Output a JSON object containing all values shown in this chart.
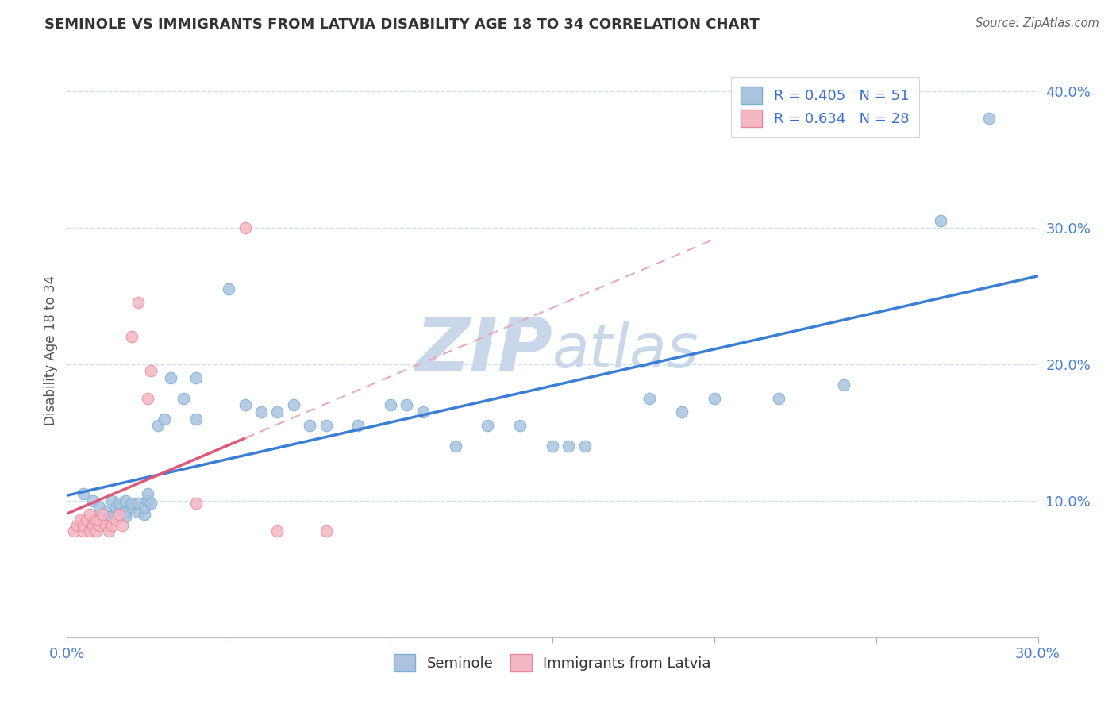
{
  "title": "SEMINOLE VS IMMIGRANTS FROM LATVIA DISABILITY AGE 18 TO 34 CORRELATION CHART",
  "source": "Source: ZipAtlas.com",
  "ylabel_label": "Disability Age 18 to 34",
  "xlim": [
    0.0,
    0.3
  ],
  "ylim": [
    0.0,
    0.42
  ],
  "x_ticks": [
    0.0,
    0.05,
    0.1,
    0.15,
    0.2,
    0.25,
    0.3
  ],
  "x_tick_labels": [
    "0.0%",
    "",
    "",
    "",
    "",
    "",
    "30.0%"
  ],
  "y_ticks": [
    0.0,
    0.1,
    0.2,
    0.3,
    0.4
  ],
  "y_tick_labels": [
    "",
    "10.0%",
    "20.0%",
    "30.0%",
    "40.0%"
  ],
  "seminole_R": 0.405,
  "seminole_N": 51,
  "latvia_R": 0.634,
  "latvia_N": 28,
  "seminole_color": "#aac4e0",
  "seminole_edge": "#7aafd4",
  "latvia_color": "#f4b8c4",
  "latvia_edge": "#e8899a",
  "trend_seminole_color": "#3a7fd5",
  "trend_latvia_color": "#e05878",
  "trend_latvia_dashed_color": "#e8aabb",
  "watermark_color": "#c8d8ea",
  "legend_R_color": "#3b6fd4",
  "grid_color": "#ccddee",
  "tick_label_color": "#4a80d0",
  "seminole_scatter": [
    [
      0.005,
      0.105
    ],
    [
      0.008,
      0.1
    ],
    [
      0.01,
      0.095
    ],
    [
      0.012,
      0.092
    ],
    [
      0.013,
      0.088
    ],
    [
      0.014,
      0.1
    ],
    [
      0.015,
      0.095
    ],
    [
      0.016,
      0.092
    ],
    [
      0.016,
      0.098
    ],
    [
      0.018,
      0.088
    ],
    [
      0.018,
      0.092
    ],
    [
      0.018,
      0.1
    ],
    [
      0.02,
      0.095
    ],
    [
      0.02,
      0.098
    ],
    [
      0.022,
      0.092
    ],
    [
      0.022,
      0.098
    ],
    [
      0.024,
      0.09
    ],
    [
      0.024,
      0.095
    ],
    [
      0.025,
      0.1
    ],
    [
      0.025,
      0.105
    ],
    [
      0.026,
      0.098
    ],
    [
      0.028,
      0.155
    ],
    [
      0.03,
      0.16
    ],
    [
      0.032,
      0.19
    ],
    [
      0.036,
      0.175
    ],
    [
      0.04,
      0.16
    ],
    [
      0.04,
      0.19
    ],
    [
      0.05,
      0.255
    ],
    [
      0.055,
      0.17
    ],
    [
      0.06,
      0.165
    ],
    [
      0.065,
      0.165
    ],
    [
      0.07,
      0.17
    ],
    [
      0.075,
      0.155
    ],
    [
      0.08,
      0.155
    ],
    [
      0.09,
      0.155
    ],
    [
      0.1,
      0.17
    ],
    [
      0.105,
      0.17
    ],
    [
      0.11,
      0.165
    ],
    [
      0.12,
      0.14
    ],
    [
      0.13,
      0.155
    ],
    [
      0.14,
      0.155
    ],
    [
      0.15,
      0.14
    ],
    [
      0.155,
      0.14
    ],
    [
      0.16,
      0.14
    ],
    [
      0.18,
      0.175
    ],
    [
      0.19,
      0.165
    ],
    [
      0.2,
      0.175
    ],
    [
      0.22,
      0.175
    ],
    [
      0.24,
      0.185
    ],
    [
      0.27,
      0.305
    ],
    [
      0.285,
      0.38
    ]
  ],
  "latvia_scatter": [
    [
      0.002,
      0.078
    ],
    [
      0.003,
      0.082
    ],
    [
      0.004,
      0.086
    ],
    [
      0.005,
      0.078
    ],
    [
      0.005,
      0.082
    ],
    [
      0.006,
      0.086
    ],
    [
      0.007,
      0.09
    ],
    [
      0.007,
      0.078
    ],
    [
      0.008,
      0.082
    ],
    [
      0.009,
      0.086
    ],
    [
      0.009,
      0.078
    ],
    [
      0.01,
      0.082
    ],
    [
      0.01,
      0.086
    ],
    [
      0.011,
      0.09
    ],
    [
      0.012,
      0.082
    ],
    [
      0.013,
      0.078
    ],
    [
      0.014,
      0.082
    ],
    [
      0.015,
      0.086
    ],
    [
      0.016,
      0.09
    ],
    [
      0.017,
      0.082
    ],
    [
      0.02,
      0.22
    ],
    [
      0.022,
      0.245
    ],
    [
      0.025,
      0.175
    ],
    [
      0.026,
      0.195
    ],
    [
      0.04,
      0.098
    ],
    [
      0.055,
      0.3
    ],
    [
      0.065,
      0.078
    ],
    [
      0.08,
      0.078
    ]
  ]
}
